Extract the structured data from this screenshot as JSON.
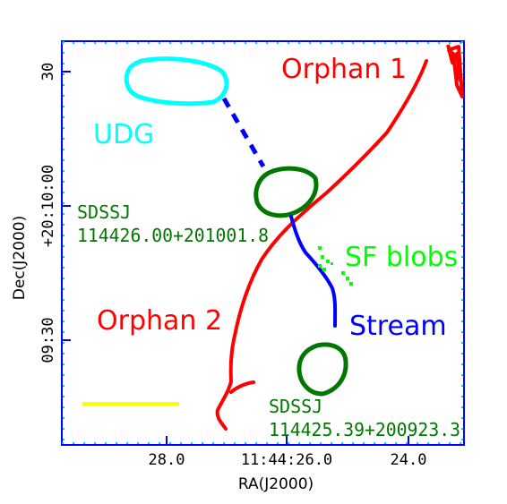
{
  "axes": {
    "xlabel": "RA(J2000)",
    "ylabel": "Dec(J2000)",
    "xticks": [
      "28.0",
      "11:44:26.0",
      "24.0"
    ],
    "yticks": [
      "30",
      "+20:10:00",
      "09:30"
    ]
  },
  "annotations": {
    "orphan1": "Orphan 1",
    "orphan2": "Orphan 2",
    "udg": "UDG",
    "sdss1_line1": "SDSSJ",
    "sdss1_line2": "114426.00+201001.8",
    "sf_blobs": "SF blobs",
    "stream": "Stream",
    "sdss2_line1": "SDSSJ",
    "sdss2_line2": "114425.39+200923.3"
  },
  "colors": {
    "frame": "#0000ff",
    "orphan": "#ff0000",
    "udg": "#00ffff",
    "stream": "#0000ff",
    "sdss": "#007700",
    "sf_blobs": "#00ff00",
    "scalebar": "#ffff00"
  }
}
